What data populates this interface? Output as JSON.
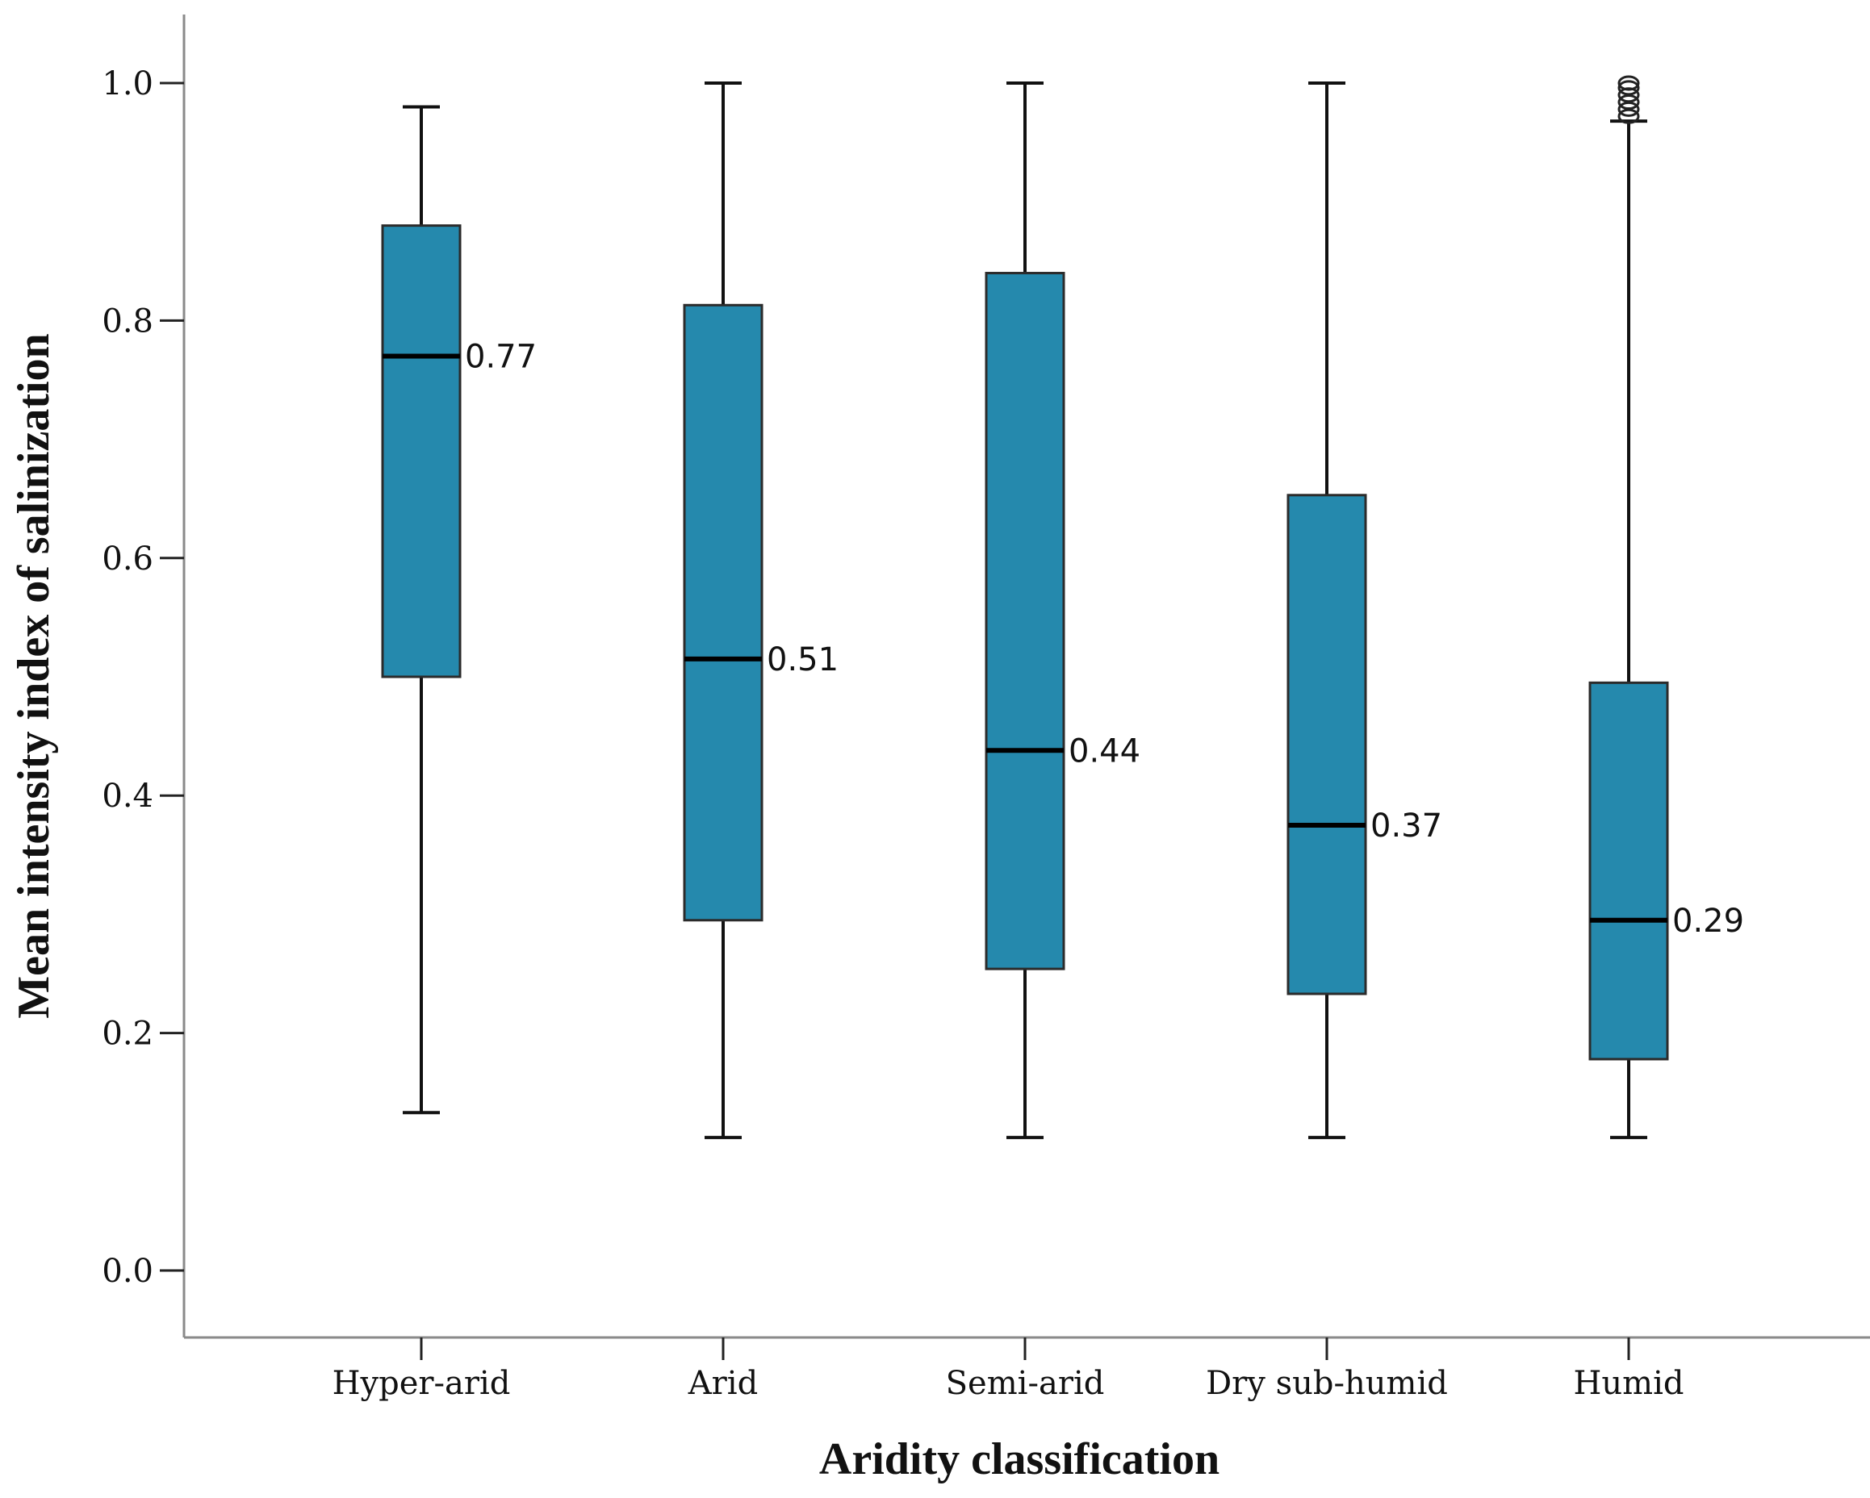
{
  "chart_data": {
    "type": "boxplot",
    "title": "",
    "xlabel": "Aridity classification",
    "ylabel": "Mean intensity index of salinization",
    "ylim": [
      -0.11,
      1.06
    ],
    "yticks": [
      "0.0",
      "0.2",
      "0.4",
      "0.6",
      "0.8",
      "1.0"
    ],
    "grid": false,
    "box_color": "#2589ad",
    "categories": [
      "Hyper-arid",
      "Arid",
      "Semi-arid",
      "Dry sub-humid",
      "Humid"
    ],
    "boxes": [
      {
        "category": "Hyper-arid",
        "whisker_low": 0.133,
        "q1": 0.5,
        "median": 0.77,
        "q3": 0.88,
        "whisker_high": 0.98,
        "median_label": "0.77"
      },
      {
        "category": "Arid",
        "whisker_low": 0.112,
        "q1": 0.295,
        "median": 0.515,
        "q3": 0.813,
        "whisker_high": 1.0,
        "median_label": "0.51"
      },
      {
        "category": "Semi-arid",
        "whisker_low": 0.112,
        "q1": 0.254,
        "median": 0.438,
        "q3": 0.84,
        "whisker_high": 1.0,
        "median_label": "0.44"
      },
      {
        "category": "Dry sub-humid",
        "whisker_low": 0.112,
        "q1": 0.233,
        "median": 0.375,
        "q3": 0.653,
        "whisker_high": 1.0,
        "median_label": "0.37"
      },
      {
        "category": "Humid",
        "whisker_low": 0.112,
        "q1": 0.178,
        "median": 0.295,
        "q3": 0.495,
        "whisker_high": 0.968,
        "median_label": "0.29",
        "outliers": [
          0.972,
          0.978,
          0.984,
          0.99,
          0.996,
          1.0
        ]
      }
    ]
  }
}
